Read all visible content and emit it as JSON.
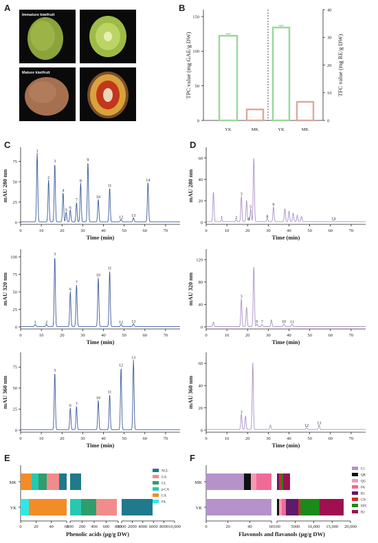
{
  "panels": {
    "A": "A",
    "B": "B",
    "C": "C",
    "D": "D",
    "E": "E",
    "F": "F"
  },
  "panelA": {
    "immature_label": "Immature kiwifruit",
    "mature_label": "Mature kiwifruit"
  },
  "panelB": {
    "ylabel_left": "TPC value (mg GAE/g DW)",
    "ylabel_right": "TFC value (mg RE/g DW)",
    "left_ticks": [
      "0",
      "50",
      "100",
      "150"
    ],
    "right_ticks": [
      "0",
      "10",
      "20",
      "30",
      "40"
    ],
    "categories": [
      "YK",
      "MK",
      "YK",
      "MK"
    ]
  },
  "chromatograms": {
    "xlabel": "Time (min)",
    "x_ticks": [
      "0",
      "10",
      "20",
      "30",
      "40",
      "50",
      "60",
      "70"
    ],
    "C1": {
      "ylabel": "mAU 280 nm",
      "y_ticks": [
        "0",
        "25",
        "50",
        "75"
      ],
      "peaks": [
        {
          "n": "1",
          "t": 8,
          "h": 85
        },
        {
          "n": "2",
          "t": 13.5,
          "h": 52
        },
        {
          "n": "3",
          "t": 16.5,
          "h": 72
        },
        {
          "n": "4",
          "t": 20.5,
          "h": 36
        },
        {
          "n": "5",
          "t": 22,
          "h": 12
        },
        {
          "n": "6",
          "t": 24,
          "h": 15
        },
        {
          "n": "7",
          "t": 27,
          "h": 24
        },
        {
          "n": "8",
          "t": 29,
          "h": 48
        },
        {
          "n": "9",
          "t": 32.5,
          "h": 74
        },
        {
          "n": "10",
          "t": 37.5,
          "h": 28
        },
        {
          "n": "11",
          "t": 43,
          "h": 42
        },
        {
          "n": "12",
          "t": 48.5,
          "h": 3
        },
        {
          "n": "13",
          "t": 54.5,
          "h": 5
        },
        {
          "n": "14",
          "t": 61.5,
          "h": 49
        }
      ]
    },
    "C2": {
      "ylabel": "mAU 320 nm",
      "y_ticks": [
        "0",
        "25",
        "50",
        "75",
        "100"
      ],
      "peaks": [
        {
          "n": "1",
          "t": 7,
          "h": 3
        },
        {
          "n": "2",
          "t": 12.5,
          "h": 3
        },
        {
          "n": "3",
          "t": 16.5,
          "h": 100
        },
        {
          "n": "6",
          "t": 24,
          "h": 50
        },
        {
          "n": "7",
          "t": 27,
          "h": 60
        },
        {
          "n": "10",
          "t": 37.5,
          "h": 70
        },
        {
          "n": "11",
          "t": 43,
          "h": 80
        },
        {
          "n": "12",
          "t": 48.5,
          "h": 3
        },
        {
          "n": "13",
          "t": 54.5,
          "h": 4
        }
      ]
    },
    "C3": {
      "ylabel": "mAU 360 nm",
      "y_ticks": [
        "0",
        "25",
        "50",
        "75"
      ],
      "peaks": [
        {
          "n": "3",
          "t": 16.5,
          "h": 68
        },
        {
          "n": "6",
          "t": 24,
          "h": 26
        },
        {
          "n": "7",
          "t": 27,
          "h": 28
        },
        {
          "n": "10",
          "t": 37.5,
          "h": 35
        },
        {
          "n": "11",
          "t": 43,
          "h": 42
        },
        {
          "n": "12",
          "t": 48.5,
          "h": 74
        },
        {
          "n": "13",
          "t": 54.5,
          "h": 83
        }
      ]
    },
    "D1": {
      "ylabel": "mAU 280 nm",
      "y_ticks": [
        "0",
        "20",
        "40",
        "60"
      ],
      "peaks": [
        {
          "n": "",
          "t": 3.5,
          "h": 28
        },
        {
          "n": "1",
          "t": 7.5,
          "h": 2
        },
        {
          "n": "2",
          "t": 14.5,
          "h": 2
        },
        {
          "n": "3",
          "t": 17,
          "h": 24
        },
        {
          "n": "",
          "t": 19.5,
          "h": 20
        },
        {
          "n": "4",
          "t": 20.5,
          "h": 1
        },
        {
          "n": "5",
          "t": 21.5,
          "h": 12
        },
        {
          "n": "",
          "t": 23,
          "h": 60
        },
        {
          "n": "8",
          "t": 29.5,
          "h": 3
        },
        {
          "n": "9",
          "t": 32.5,
          "h": 14
        },
        {
          "n": "",
          "t": 38,
          "h": 12
        },
        {
          "n": "",
          "t": 40,
          "h": 10
        },
        {
          "n": "",
          "t": 42,
          "h": 8
        },
        {
          "n": "",
          "t": 44,
          "h": 6
        },
        {
          "n": "",
          "t": 46,
          "h": 5
        },
        {
          "n": "14",
          "t": 61.5,
          "h": 1
        }
      ]
    },
    "D2": {
      "ylabel": "mAU 320 nm",
      "y_ticks": [
        "0",
        "40",
        "80",
        "120"
      ],
      "peaks": [
        {
          "n": "",
          "t": 3.5,
          "h": 8
        },
        {
          "n": "3",
          "t": 17,
          "h": 50
        },
        {
          "n": "",
          "t": 19.5,
          "h": 35
        },
        {
          "n": "",
          "t": 23,
          "h": 108
        },
        {
          "n": "6",
          "t": 24.5,
          "h": 5
        },
        {
          "n": "7",
          "t": 27,
          "h": 4
        },
        {
          "n": "",
          "t": 31.5,
          "h": 12
        },
        {
          "n": "10",
          "t": 37.5,
          "h": 5
        },
        {
          "n": "11",
          "t": 41.5,
          "h": 4
        }
      ]
    },
    "D3": {
      "ylabel": "mAU 360 nm",
      "y_ticks": [
        "0",
        "20",
        "40",
        "60"
      ],
      "peaks": [
        {
          "n": "3",
          "t": 17,
          "h": 14
        },
        {
          "n": "",
          "t": 19,
          "h": 12
        },
        {
          "n": "",
          "t": 22.5,
          "h": 60
        },
        {
          "n": "",
          "t": 31,
          "h": 4
        },
        {
          "n": "12",
          "t": 48.5,
          "h": 2
        },
        {
          "n": "13",
          "t": 54.5,
          "h": 4
        }
      ]
    }
  },
  "panelE": {
    "xlabel": "Phenolic acids (μg/g DW)",
    "rows": [
      "MK",
      "YK"
    ],
    "ticks_a": [
      "0",
      "20",
      "40",
      "60"
    ],
    "ticks_b": [
      "100",
      "200",
      "400",
      "600",
      "800"
    ],
    "ticks_c": [
      "1000",
      "2000",
      "4000",
      "6000",
      "8000",
      "10,000"
    ],
    "legend": [
      {
        "name": "NCL",
        "color": "#1f7a8c"
      },
      {
        "name": "GA",
        "color": "#f28c8c"
      },
      {
        "name": "CL",
        "color": "#2e9e6e"
      },
      {
        "name": "p-CA",
        "color": "#26c9b0"
      },
      {
        "name": "CA",
        "color": "#f28c28"
      },
      {
        "name": "FA",
        "color": "#2ee8e8"
      }
    ]
  },
  "panelF": {
    "xlabel": "Flavonols and flavanols (μg/g DW)",
    "rows": [
      "MK",
      "YK"
    ],
    "ticks_a": [
      "0",
      "20",
      "40",
      "60"
    ],
    "ticks_b": [
      "100",
      "5000",
      "10,000",
      "15,000",
      "20,000"
    ],
    "legend": [
      {
        "name": "C1",
        "color": "#b592c9"
      },
      {
        "name": "QR",
        "color": "#111111"
      },
      {
        "name": "QG",
        "color": "#f59ab0"
      },
      {
        "name": "PA",
        "color": "#f06a96"
      },
      {
        "name": "B1",
        "color": "#5e1a6b"
      },
      {
        "name": "CN",
        "color": "#d42a2a"
      },
      {
        "name": "EPC",
        "color": "#1a8a1a"
      },
      {
        "name": "B2",
        "color": "#9e1050"
      }
    ]
  }
}
